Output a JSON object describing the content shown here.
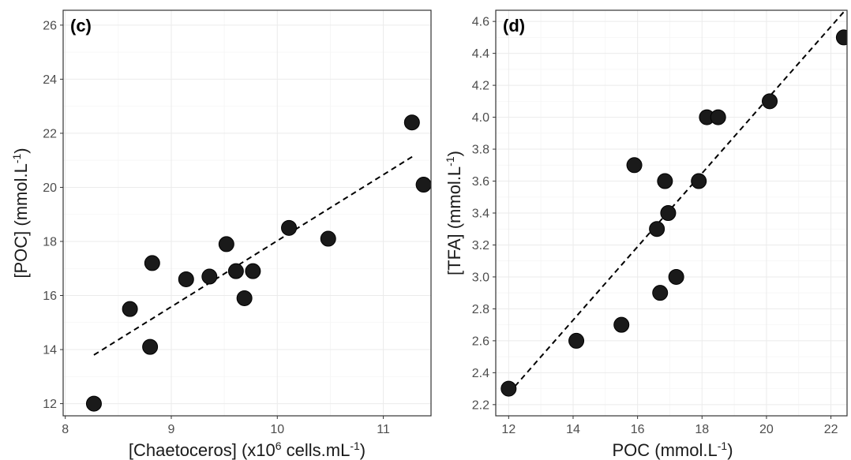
{
  "chart_data": [
    {
      "type": "scatter",
      "panel_label": "(c)",
      "xlabel": {
        "pre": "[Chaetoceros] (x10",
        "sup1": "6",
        "mid": " cells.mL",
        "sup2": "-1",
        "post": ")"
      },
      "ylabel": {
        "pre": "[POC] (mmol.L",
        "sup": "-1",
        "post": ")"
      },
      "xlim": [
        7.98,
        11.45
      ],
      "ylim": [
        11.55,
        26.55
      ],
      "xticks": [
        8,
        9,
        10,
        11
      ],
      "yticks": [
        12,
        14,
        16,
        18,
        20,
        22,
        24,
        26
      ],
      "grid": true,
      "points": [
        {
          "x": 8.27,
          "y": 12.0
        },
        {
          "x": 8.61,
          "y": 15.5
        },
        {
          "x": 8.8,
          "y": 14.1
        },
        {
          "x": 8.82,
          "y": 17.2
        },
        {
          "x": 9.14,
          "y": 16.6
        },
        {
          "x": 9.36,
          "y": 16.7
        },
        {
          "x": 9.52,
          "y": 17.9
        },
        {
          "x": 9.61,
          "y": 16.9
        },
        {
          "x": 9.69,
          "y": 15.9
        },
        {
          "x": 9.77,
          "y": 16.9
        },
        {
          "x": 10.11,
          "y": 18.5
        },
        {
          "x": 10.48,
          "y": 18.1
        },
        {
          "x": 11.27,
          "y": 22.4
        },
        {
          "x": 11.38,
          "y": 20.1
        }
      ],
      "fit_line": [
        {
          "x": 8.27,
          "y": 13.8
        },
        {
          "x": 11.3,
          "y": 21.2
        }
      ],
      "point_color": "#1a1a1a",
      "line_color": "#000000"
    },
    {
      "type": "scatter",
      "panel_label": "(d)",
      "xlabel": {
        "pre": "POC (mmol.L",
        "sup": "-1",
        "post": ")"
      },
      "ylabel": {
        "pre": "[TFA] (mmol.L",
        "sup": "-1",
        "post": ")"
      },
      "xlim": [
        11.6,
        22.5
      ],
      "ylim": [
        2.13,
        4.67
      ],
      "xticks": [
        12,
        14,
        16,
        18,
        20,
        22
      ],
      "yticks": [
        2.2,
        2.4,
        2.6,
        2.8,
        3.0,
        3.2,
        3.4,
        3.6,
        3.8,
        4.0,
        4.2,
        4.4,
        4.6
      ],
      "ytick_labels": [
        "2.2",
        "2.4",
        "2.6",
        "2.8",
        "3.0",
        "3.2",
        "3.4",
        "3.6",
        "3.8",
        "4.0",
        "4.2",
        "4.4",
        "4.6"
      ],
      "grid": true,
      "points": [
        {
          "x": 12.0,
          "y": 2.3
        },
        {
          "x": 14.1,
          "y": 2.6
        },
        {
          "x": 15.5,
          "y": 2.7
        },
        {
          "x": 15.9,
          "y": 3.7
        },
        {
          "x": 16.6,
          "y": 3.3
        },
        {
          "x": 16.7,
          "y": 2.9
        },
        {
          "x": 16.85,
          "y": 3.6
        },
        {
          "x": 16.95,
          "y": 3.4
        },
        {
          "x": 17.2,
          "y": 3.0
        },
        {
          "x": 17.9,
          "y": 3.6
        },
        {
          "x": 18.15,
          "y": 4.0
        },
        {
          "x": 18.5,
          "y": 4.0
        },
        {
          "x": 20.1,
          "y": 4.1
        },
        {
          "x": 22.4,
          "y": 4.5
        }
      ],
      "fit_line": [
        {
          "x": 12.0,
          "y": 2.27
        },
        {
          "x": 22.4,
          "y": 4.66
        }
      ],
      "point_color": "#1a1a1a",
      "line_color": "#000000"
    }
  ]
}
